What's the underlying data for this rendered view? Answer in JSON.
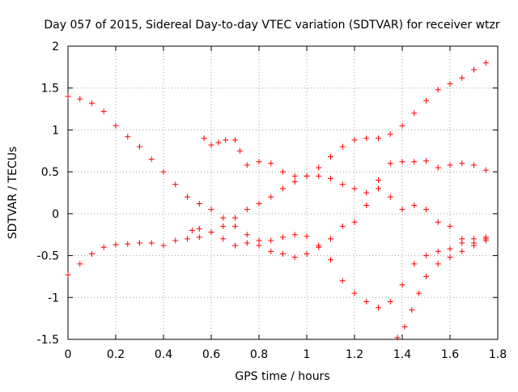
{
  "chart_data": {
    "type": "scatter",
    "title": "Day 057 of 2015, Sidereal Day-to-day VTEC variation (SDTVAR) for receiver wtzr",
    "xlabel": "GPS time / hours",
    "ylabel": "SDTVAR / TECUs",
    "xlim": [
      0,
      1.8
    ],
    "ylim": [
      -1.5,
      2
    ],
    "xticks": [
      0,
      0.2,
      0.4,
      0.6,
      0.8,
      1,
      1.2,
      1.4,
      1.6,
      1.8
    ],
    "xtick_labels": [
      "0",
      "0.2",
      "0.4",
      "0.6",
      "0.8",
      "1",
      "1.2",
      "1.4",
      "1.6",
      "1.8"
    ],
    "yticks": [
      -1.5,
      -1,
      -0.5,
      0,
      0.5,
      1,
      1.5,
      2
    ],
    "ytick_labels": [
      "-1.5",
      "-1",
      "-0.5",
      "0",
      "0.5",
      "1",
      "1.5",
      "2"
    ],
    "grid": true,
    "marker": "+",
    "marker_color": "#ff0000",
    "series": [
      {
        "x": [
          0.0,
          0.05,
          0.1,
          0.15,
          0.2,
          0.25,
          0.3,
          0.35,
          0.4,
          0.45,
          0.5,
          0.55,
          0.6,
          0.65,
          0.7,
          0.75,
          0.8,
          0.85,
          0.9,
          0.95,
          1.0,
          1.05,
          1.1,
          1.15,
          1.2,
          1.25,
          1.3,
          1.35,
          1.4,
          1.45,
          1.5,
          1.55,
          1.6,
          1.65,
          1.7,
          1.75
        ],
        "y": [
          1.4,
          1.37,
          1.32,
          1.22,
          1.05,
          0.92,
          0.8,
          0.65,
          0.5,
          0.35,
          0.2,
          0.12,
          0.05,
          -0.05,
          -0.15,
          -0.25,
          -0.38,
          -0.45,
          -0.48,
          -0.52,
          -0.48,
          -0.4,
          -0.3,
          -0.15,
          -0.1,
          0.1,
          0.4,
          0.6,
          0.62,
          0.62,
          0.63,
          0.55,
          0.58,
          0.6,
          0.58,
          0.52
        ]
      },
      {
        "x": [
          0.0,
          0.05,
          0.1,
          0.15,
          0.2,
          0.25,
          0.3,
          0.35,
          0.4,
          0.45,
          0.5,
          0.55,
          0.6,
          0.65,
          0.7,
          0.75,
          0.8,
          0.85,
          0.9,
          0.95,
          1.0,
          1.05,
          1.1,
          1.15,
          1.2,
          1.25,
          1.3,
          1.35,
          1.4,
          1.45,
          1.5,
          1.55,
          1.6,
          1.65,
          1.7,
          1.75
        ],
        "y": [
          -0.73,
          -0.6,
          -0.48,
          -0.4,
          -0.37,
          -0.36,
          -0.35,
          -0.35,
          -0.38,
          -0.32,
          -0.3,
          -0.28,
          -0.22,
          -0.15,
          -0.05,
          0.05,
          0.12,
          0.2,
          0.3,
          0.38,
          0.45,
          0.55,
          0.68,
          0.8,
          0.88,
          0.9,
          0.9,
          0.95,
          1.05,
          1.2,
          1.35,
          1.48,
          1.55,
          1.62,
          1.72,
          1.8
        ]
      },
      {
        "x": [
          0.57,
          0.6,
          0.63,
          0.66,
          0.7,
          0.72,
          0.75,
          0.8,
          0.85,
          0.9,
          0.95,
          1.0,
          1.05,
          1.1,
          1.15,
          1.2,
          1.25,
          1.3,
          1.35,
          1.4,
          1.45,
          1.5,
          1.55,
          1.6,
          1.65,
          1.7,
          1.75
        ],
        "y": [
          0.9,
          0.82,
          0.85,
          0.88,
          0.88,
          0.75,
          0.58,
          0.62,
          0.6,
          0.5,
          0.45,
          0.45,
          0.45,
          0.42,
          0.35,
          0.3,
          0.25,
          0.3,
          0.2,
          0.05,
          0.1,
          0.05,
          -0.1,
          -0.15,
          -0.3,
          -0.35,
          -0.3
        ]
      },
      {
        "x": [
          0.52,
          0.55,
          0.6,
          0.65,
          0.7,
          0.75,
          0.8,
          0.85,
          0.9,
          0.95,
          1.0,
          1.05,
          1.1,
          1.15,
          1.2,
          1.25,
          1.3,
          1.35,
          1.4,
          1.45,
          1.5,
          1.55,
          1.6,
          1.65,
          1.7,
          1.75
        ],
        "y": [
          -0.2,
          -0.18,
          -0.22,
          -0.3,
          -0.38,
          -0.35,
          -0.32,
          -0.32,
          -0.28,
          -0.25,
          -0.27,
          -0.38,
          -0.55,
          -0.8,
          -0.95,
          -1.05,
          -1.12,
          -1.05,
          -0.85,
          -0.6,
          -0.5,
          -0.45,
          -0.42,
          -0.35,
          -0.3,
          -0.28
        ]
      },
      {
        "x": [
          1.38,
          1.41,
          1.44,
          1.47,
          1.5,
          1.55,
          1.6,
          1.65,
          1.7,
          1.75
        ],
        "y": [
          -1.48,
          -1.35,
          -1.15,
          -0.95,
          -0.75,
          -0.6,
          -0.52,
          -0.45,
          -0.38,
          -0.32
        ]
      }
    ]
  }
}
